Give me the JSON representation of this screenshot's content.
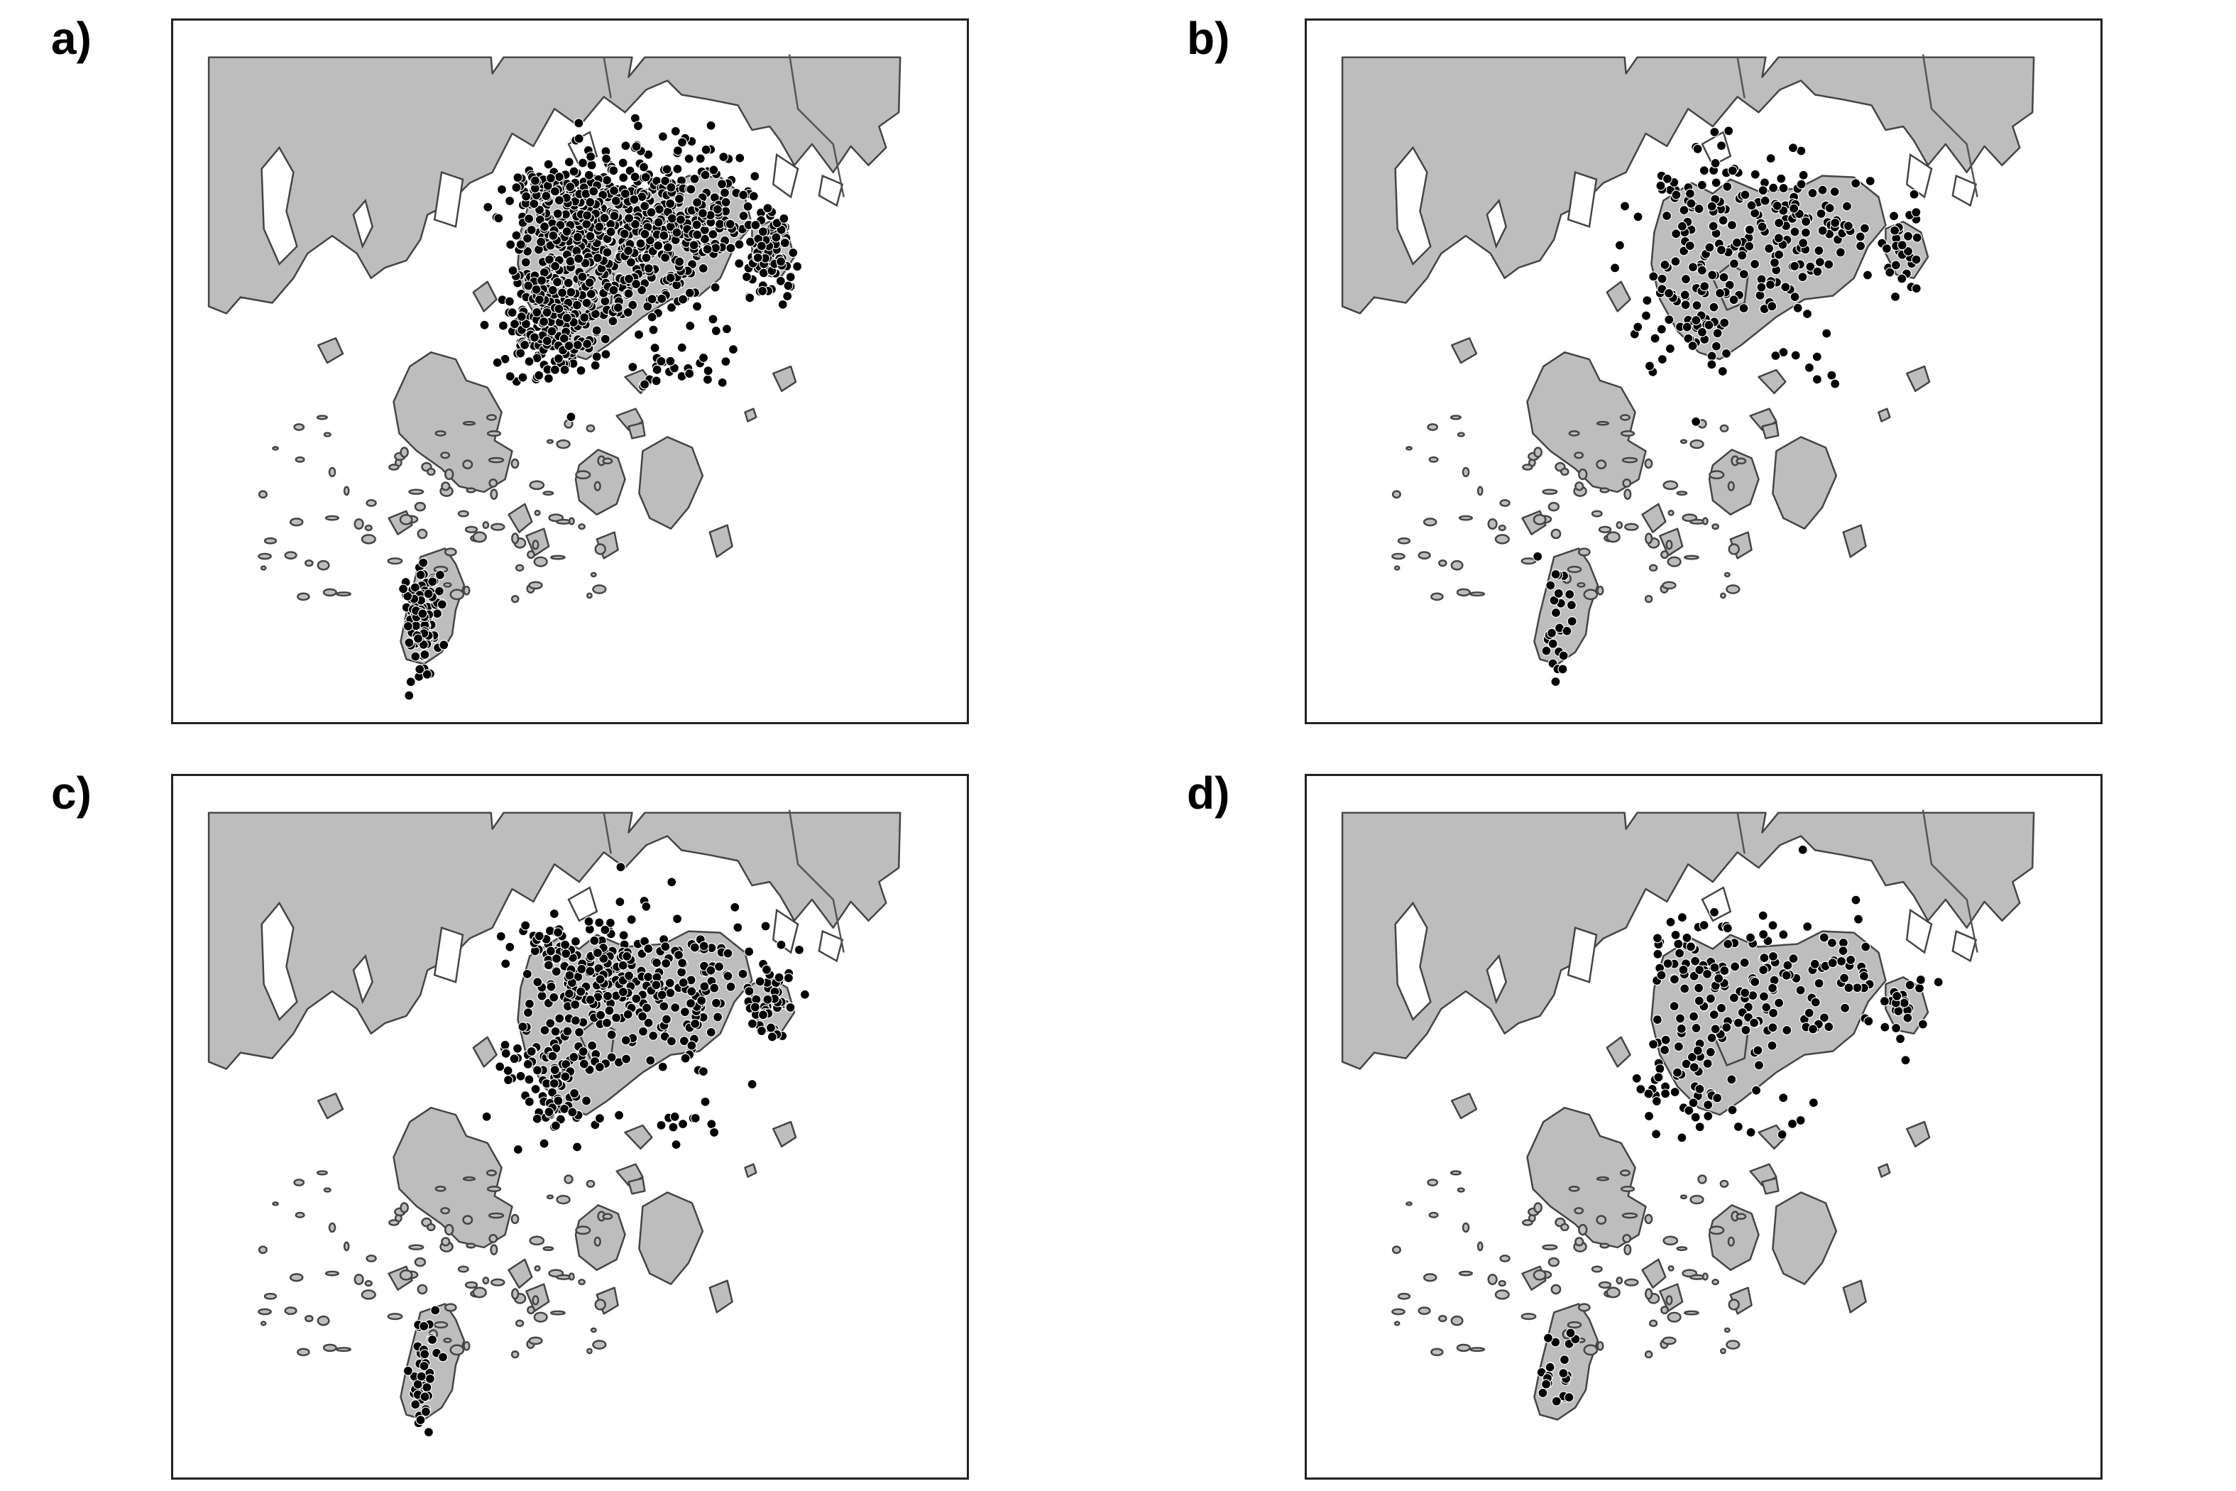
{
  "panels": [
    {
      "label": "a)",
      "density": 1.0
    },
    {
      "label": "b)",
      "density": 0.26
    },
    {
      "label": "c)",
      "density": 0.42
    },
    {
      "label": "d)",
      "density": 0.22
    }
  ],
  "colors": {
    "land": "#bdbdbd",
    "coast": "#444444",
    "water": "#ffffff",
    "point": "#000000"
  }
}
